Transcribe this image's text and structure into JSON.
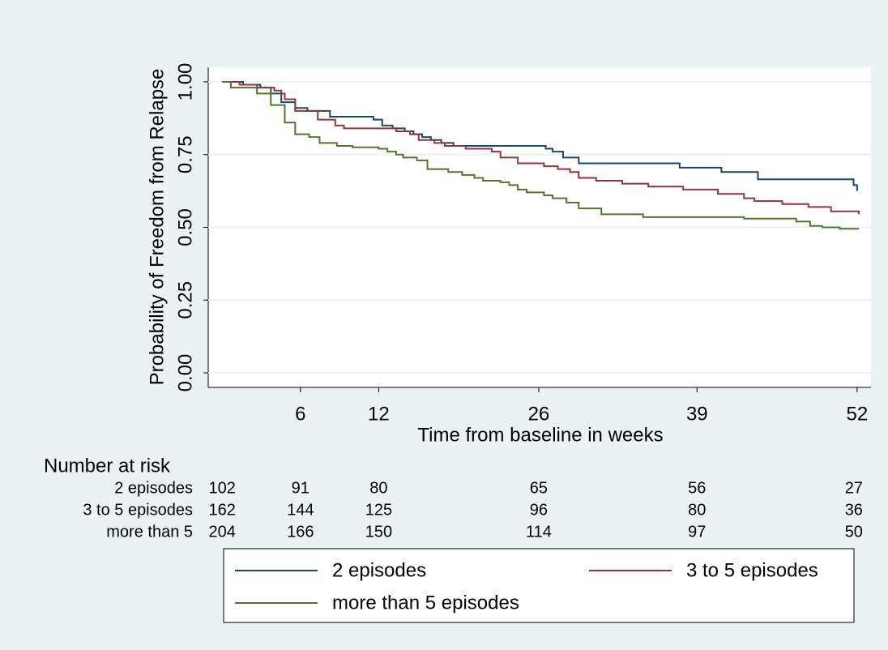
{
  "chart_data": {
    "type": "step",
    "x_label": "Time from baseline in weeks",
    "y_label": "Probability of Freedom from Relapse",
    "xlim": [
      -8,
      373
    ],
    "ylim": [
      -0.05,
      1.05
    ],
    "xticks": [
      {
        "value": 45,
        "label": "6"
      },
      {
        "value": 90,
        "label": "12"
      },
      {
        "value": 182,
        "label": "26"
      },
      {
        "value": 273,
        "label": "39"
      },
      {
        "value": 365,
        "label": "52"
      }
    ],
    "yticks": [
      {
        "value": 0,
        "label": "0.00"
      },
      {
        "value": 0.25,
        "label": "0.25"
      },
      {
        "value": 0.5,
        "label": "0.50"
      },
      {
        "value": 0.75,
        "label": "0.75"
      },
      {
        "value": 1,
        "label": "1.00"
      }
    ],
    "grid": true,
    "series": [
      {
        "name": "2 episodes",
        "color": "#1a476f",
        "x": [
          0,
          12,
          22,
          28,
          34,
          42,
          49,
          62,
          87,
          92,
          98,
          105,
          110,
          115,
          120,
          126,
          133,
          186,
          190,
          196,
          205,
          263,
          287,
          308,
          363,
          365
        ],
        "values": [
          1.0,
          0.99,
          0.98,
          0.96,
          0.93,
          0.91,
          0.9,
          0.88,
          0.87,
          0.85,
          0.84,
          0.83,
          0.82,
          0.81,
          0.8,
          0.79,
          0.78,
          0.77,
          0.76,
          0.74,
          0.72,
          0.705,
          0.69,
          0.665,
          0.645,
          0.625
        ]
      },
      {
        "name": "3 to 5 episodes",
        "color": "#90353b",
        "x": [
          0,
          10,
          20,
          30,
          34,
          36,
          42,
          55,
          65,
          70,
          100,
          108,
          113,
          122,
          128,
          140,
          155,
          160,
          170,
          185,
          193,
          200,
          205,
          215,
          230,
          245,
          265,
          285,
          300,
          306,
          322,
          337,
          350,
          366
        ],
        "values": [
          1.0,
          0.99,
          0.98,
          0.97,
          0.96,
          0.94,
          0.9,
          0.87,
          0.85,
          0.84,
          0.83,
          0.82,
          0.8,
          0.79,
          0.78,
          0.77,
          0.76,
          0.74,
          0.72,
          0.71,
          0.7,
          0.69,
          0.67,
          0.66,
          0.65,
          0.64,
          0.63,
          0.615,
          0.6,
          0.59,
          0.58,
          0.57,
          0.555,
          0.545
        ]
      },
      {
        "name": "more than 5 episodes",
        "color": "#55752f",
        "x": [
          0,
          5,
          20,
          28,
          36,
          42,
          50,
          56,
          66,
          75,
          90,
          95,
          100,
          104,
          112,
          118,
          130,
          138,
          145,
          150,
          160,
          165,
          170,
          175,
          185,
          190,
          198,
          205,
          218,
          242,
          300,
          330,
          338,
          345,
          355,
          366
        ],
        "values": [
          1.0,
          0.98,
          0.96,
          0.92,
          0.86,
          0.82,
          0.81,
          0.79,
          0.78,
          0.775,
          0.77,
          0.76,
          0.75,
          0.74,
          0.73,
          0.7,
          0.69,
          0.68,
          0.67,
          0.66,
          0.655,
          0.645,
          0.63,
          0.62,
          0.61,
          0.6,
          0.585,
          0.565,
          0.545,
          0.535,
          0.53,
          0.52,
          0.505,
          0.5,
          0.495,
          0.495
        ]
      }
    ],
    "risk_table": {
      "title": "Number at risk",
      "rows": [
        {
          "label": "2 episodes",
          "values": [
            102,
            91,
            80,
            65,
            56,
            27
          ]
        },
        {
          "label": "3 to 5 episodes",
          "values": [
            162,
            144,
            125,
            96,
            80,
            36
          ]
        },
        {
          "label": "more than 5",
          "values": [
            204,
            166,
            150,
            114,
            97,
            50
          ]
        }
      ]
    }
  }
}
